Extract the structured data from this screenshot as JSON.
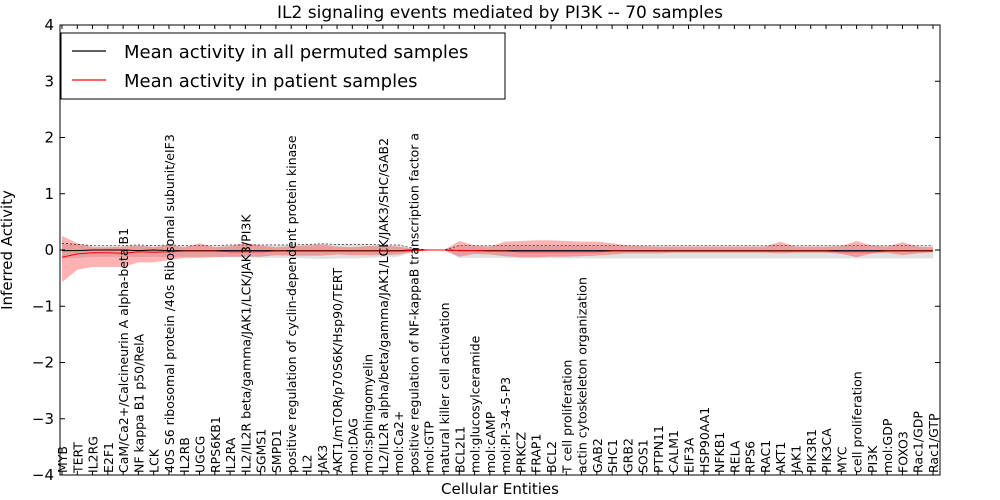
{
  "chart_data": {
    "type": "line",
    "title": "IL2 signaling events mediated by PI3K -- 70 samples",
    "xlabel": "Cellular Entities",
    "ylabel": "Inferred Activity",
    "ylim": [
      -4,
      4
    ],
    "yticks": [
      -4,
      -3,
      -2,
      -1,
      0,
      1,
      2,
      3,
      4
    ],
    "ytick_labels": [
      "−4",
      "−3",
      "−2",
      "−1",
      "0",
      "1",
      "2",
      "3",
      "4"
    ],
    "legend": {
      "placement": "top-left",
      "entries": [
        {
          "label": "Mean activity in all permuted samples",
          "color": "#000000"
        },
        {
          "label": "Mean activity in patient samples",
          "color": "#ff0000"
        }
      ]
    },
    "categories": [
      "MYB",
      "TERT",
      "IL2RG",
      "E2F1",
      "CaM/Ca2+/Calcineurin A alpha-beta B1",
      "NF kappa B1 p50/RelA",
      "LCK",
      "40S S6 ribosomal protein /40s Ribosomal subunit/eIF3",
      "IL2RB",
      "UGCG",
      "RPS6KB1",
      "IL2RA",
      "IL2/IL2R beta/gamma/JAK1/LCK/JAK3/PI3K",
      "SGMS1",
      "SMPD1",
      "positive regulation of cyclin-dependent protein kinase",
      "IL2",
      "JAK3",
      "AKT1/mTOR/p70S6K/Hsp90/TERT",
      "mol:DAG",
      "mol:sphingomyelin",
      "IL2/IL2R alpha/beta/gamma/JAK1/LCK/JAK3/SHC/GAB2",
      "mol:Ca2+",
      "positive regulation of NF-kappaB transcription factor a",
      "mol:GTP",
      "natural killer cell activation",
      "BCL2L1",
      "mol:glucosylceramide",
      "mol:cAMP",
      "mol:PI-3-4-5-P3",
      "PRKCZ",
      "FRAP1",
      "BCL2",
      "T cell proliferation",
      "actin cytoskeleton organization",
      "GAB2",
      "SHC1",
      "GRB2",
      "SOS1",
      "PTPN11",
      "CALM1",
      "EIF3A",
      "HSP90AA1",
      "NFKB1",
      "RELA",
      "RPS6",
      "RAC1",
      "AKT1",
      "JAK1",
      "PIK3R1",
      "PIK3CA",
      "MYC",
      "cell proliferation",
      "PI3K",
      "mol:GDP",
      "FOXO3",
      "Rac1/GDP",
      "Rac1/GTP"
    ],
    "series": [
      {
        "name": "Mean activity in patient samples",
        "color": "#ff0000",
        "values": [
          -0.13,
          -0.07,
          -0.05,
          -0.05,
          -0.06,
          -0.03,
          -0.04,
          -0.03,
          -0.02,
          -0.02,
          -0.02,
          -0.03,
          -0.03,
          -0.03,
          -0.02,
          -0.02,
          -0.02,
          -0.02,
          -0.02,
          -0.02,
          -0.02,
          -0.02,
          -0.02,
          -0.01,
          0.0,
          0.0,
          -0.01,
          -0.01,
          -0.02,
          -0.02,
          -0.03,
          -0.03,
          -0.03,
          -0.03,
          -0.03,
          -0.03,
          -0.02,
          -0.02,
          -0.02,
          -0.02,
          -0.02,
          -0.02,
          -0.02,
          -0.02,
          -0.02,
          -0.02,
          -0.02,
          -0.02,
          -0.02,
          -0.02,
          -0.02,
          -0.03,
          -0.03,
          -0.03,
          -0.02,
          -0.02,
          -0.02,
          -0.02
        ],
        "upper": [
          0.25,
          0.12,
          0.05,
          0.05,
          0.06,
          0.08,
          0.05,
          0.09,
          0.05,
          0.12,
          0.05,
          0.07,
          0.13,
          0.08,
          0.05,
          0.07,
          0.08,
          0.1,
          0.06,
          0.05,
          0.07,
          0.08,
          0.06,
          0.02,
          0.0,
          0.0,
          0.16,
          0.08,
          0.06,
          0.15,
          0.16,
          0.17,
          0.17,
          0.16,
          0.15,
          0.15,
          0.12,
          0.08,
          0.07,
          0.06,
          0.06,
          0.06,
          0.06,
          0.06,
          0.06,
          0.06,
          0.06,
          0.15,
          0.06,
          0.06,
          0.06,
          0.07,
          0.16,
          0.08,
          0.06,
          0.14,
          0.06,
          0.05
        ],
        "lower": [
          -0.57,
          -0.35,
          -0.3,
          -0.3,
          -0.3,
          -0.22,
          -0.22,
          -0.18,
          -0.14,
          -0.14,
          -0.13,
          -0.12,
          -0.12,
          -0.12,
          -0.09,
          -0.1,
          -0.1,
          -0.1,
          -0.08,
          -0.09,
          -0.09,
          -0.09,
          -0.08,
          -0.03,
          0.0,
          0.0,
          -0.12,
          -0.07,
          -0.08,
          -0.11,
          -0.13,
          -0.13,
          -0.12,
          -0.12,
          -0.11,
          -0.1,
          -0.08,
          -0.06,
          -0.06,
          -0.06,
          -0.05,
          -0.05,
          -0.05,
          -0.05,
          -0.05,
          -0.05,
          -0.05,
          -0.06,
          -0.05,
          -0.05,
          -0.05,
          -0.07,
          -0.13,
          -0.06,
          -0.05,
          -0.09,
          -0.06,
          -0.04
        ]
      },
      {
        "name": "Mean activity in all permuted samples",
        "color": "#000000",
        "values": [
          -0.01,
          -0.01,
          0.0,
          0.0,
          0.0,
          -0.01,
          0.0,
          -0.01,
          -0.01,
          -0.01,
          -0.01,
          -0.01,
          -0.01,
          -0.01,
          -0.01,
          -0.01,
          -0.01,
          -0.01,
          -0.01,
          -0.01,
          -0.01,
          -0.01,
          -0.01,
          0.0,
          0.0,
          0.0,
          -0.01,
          -0.01,
          -0.01,
          -0.01,
          -0.01,
          -0.01,
          -0.01,
          -0.01,
          -0.01,
          -0.01,
          -0.01,
          -0.01,
          -0.01,
          -0.01,
          -0.01,
          -0.01,
          -0.01,
          -0.01,
          -0.01,
          -0.01,
          -0.01,
          -0.01,
          -0.01,
          -0.01,
          -0.01,
          -0.01,
          -0.01,
          -0.01,
          -0.01,
          -0.01,
          -0.01,
          -0.01
        ],
        "upper": [
          0.12,
          0.1,
          0.08,
          0.08,
          0.08,
          0.09,
          0.08,
          0.09,
          0.08,
          0.08,
          0.08,
          0.09,
          0.09,
          0.09,
          0.09,
          0.09,
          0.1,
          0.11,
          0.1,
          0.1,
          0.1,
          0.09,
          0.09,
          0.03,
          0.0,
          0.0,
          0.08,
          0.08,
          0.08,
          0.08,
          0.08,
          0.08,
          0.08,
          0.08,
          0.08,
          0.08,
          0.08,
          0.08,
          0.08,
          0.08,
          0.08,
          0.08,
          0.08,
          0.08,
          0.08,
          0.08,
          0.08,
          0.08,
          0.08,
          0.08,
          0.08,
          0.08,
          0.08,
          0.08,
          0.08,
          0.08,
          0.08,
          0.08
        ],
        "lower": [
          -0.15,
          -0.14,
          -0.12,
          -0.12,
          -0.12,
          -0.13,
          -0.12,
          -0.13,
          -0.12,
          -0.12,
          -0.12,
          -0.13,
          -0.13,
          -0.14,
          -0.14,
          -0.14,
          -0.15,
          -0.16,
          -0.15,
          -0.15,
          -0.14,
          -0.13,
          -0.12,
          -0.04,
          0.0,
          0.0,
          -0.14,
          -0.14,
          -0.14,
          -0.14,
          -0.15,
          -0.15,
          -0.15,
          -0.15,
          -0.15,
          -0.15,
          -0.15,
          -0.15,
          -0.15,
          -0.15,
          -0.15,
          -0.15,
          -0.15,
          -0.15,
          -0.15,
          -0.15,
          -0.15,
          -0.15,
          -0.15,
          -0.15,
          -0.15,
          -0.15,
          -0.15,
          -0.15,
          -0.15,
          -0.15,
          -0.15,
          -0.15
        ]
      }
    ]
  }
}
